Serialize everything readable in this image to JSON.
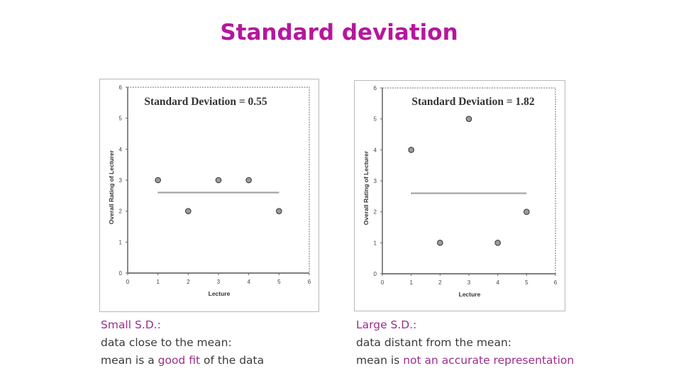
{
  "slide": {
    "title": "Standard deviation"
  },
  "colors": {
    "title": "#b5179e",
    "accent": "#9b2e8a",
    "text": "#3a3a3a"
  },
  "chart_data": [
    {
      "type": "scatter",
      "title": "Standard Deviation = 0.55",
      "xlabel": "Lecture",
      "ylabel": "Overall Rating of Lecturer",
      "xlim": [
        0,
        6
      ],
      "ylim": [
        0,
        6
      ],
      "xticks": [
        "0",
        "1",
        "2",
        "3",
        "4",
        "5",
        "6"
      ],
      "yticks": [
        "0",
        "1",
        "2",
        "3",
        "4",
        "5",
        "6"
      ],
      "x": [
        1,
        2,
        3,
        4,
        5
      ],
      "y": [
        3,
        2,
        3,
        3,
        2
      ],
      "mean": 2.6,
      "mean_line_range": [
        1,
        5
      ],
      "grid": false
    },
    {
      "type": "scatter",
      "title": "Standard Deviation = 1.82",
      "xlabel": "Lecture",
      "ylabel": "Overall Rating of Lecturer",
      "xlim": [
        0,
        6
      ],
      "ylim": [
        0,
        6
      ],
      "xticks": [
        "0",
        "1",
        "2",
        "3",
        "4",
        "5",
        "6"
      ],
      "yticks": [
        "0",
        "1",
        "2",
        "3",
        "4",
        "5",
        "6"
      ],
      "x": [
        1,
        2,
        3,
        4,
        5
      ],
      "y": [
        4,
        1,
        5,
        1,
        2
      ],
      "mean": 2.6,
      "mean_line_range": [
        1,
        5
      ],
      "grid": false
    }
  ],
  "captions": [
    {
      "heading": "Small S.D.:",
      "line2": "data close to the mean:",
      "line3_pre": "mean is a ",
      "line3_accent": "good fit",
      "line3_post": " of the data"
    },
    {
      "heading": "Large S.D.:",
      "line2": "data distant from the mean:",
      "line3_pre": "mean is ",
      "line3_accent": "not an accurate representation",
      "line3_post": ""
    }
  ]
}
